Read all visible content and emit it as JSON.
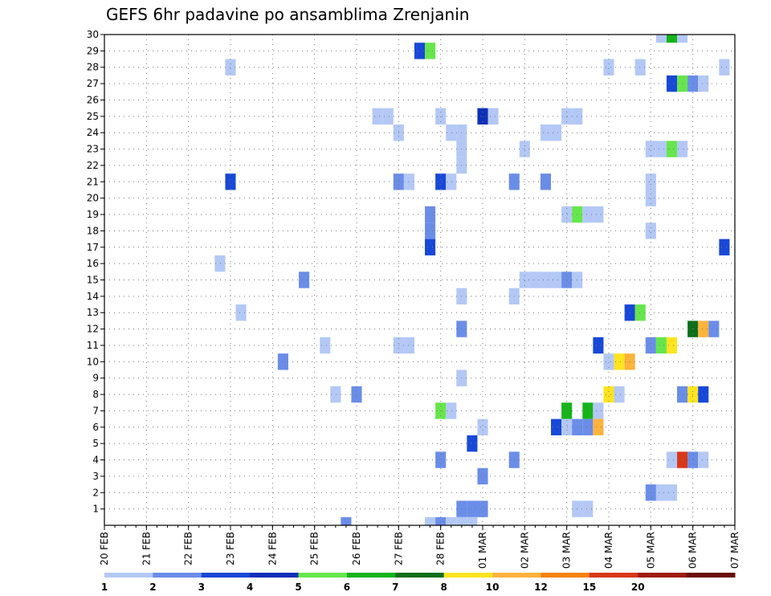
{
  "chart_data": {
    "type": "heatmap",
    "title": "GEFS 6hr padavine po ansamblima Zrenjanin",
    "xlabel": "",
    "ylabel": "",
    "x_ticks": [
      "20 FEB",
      "21 FEB",
      "22 FEB",
      "23 FEB",
      "24 FEB",
      "25 FEB",
      "26 FEB",
      "27 FEB",
      "28 FEB",
      "01 MAR",
      "02 MAR",
      "03 MAR",
      "04 MAR",
      "05 MAR",
      "06 MAR",
      "07 MAR"
    ],
    "y_ticks": [
      1,
      2,
      3,
      4,
      5,
      6,
      7,
      8,
      9,
      10,
      11,
      12,
      13,
      14,
      15,
      16,
      17,
      18,
      19,
      20,
      21,
      22,
      23,
      24,
      25,
      26,
      27,
      28,
      29,
      30
    ],
    "xlim": [
      "20 FEB 00Z",
      "07 MAR 00Z"
    ],
    "ylim": [
      0,
      30
    ],
    "x_unit": "6h step",
    "grid": true,
    "colorbar": {
      "labels": [
        "1",
        "2",
        "3",
        "4",
        "5",
        "6",
        "7",
        "8",
        "10",
        "12",
        "15",
        "20"
      ],
      "colors": [
        "#b3c8f5",
        "#6a8de8",
        "#1848d8",
        "#0e2fb8",
        "#66e64c",
        "#16b41a",
        "#0d6e1a",
        "#ffe41e",
        "#fdb33c",
        "#f5820a",
        "#d83818",
        "#a01c12",
        "#6a0c0c"
      ]
    },
    "cells": [
      {
        "x": "27 FEB 12Z",
        "member": 29,
        "v": 3
      },
      {
        "x": "27 FEB 18Z",
        "member": 29,
        "v": 5
      },
      {
        "x": "05 MAR 06Z",
        "member": 30,
        "v": 1
      },
      {
        "x": "05 MAR 12Z",
        "member": 30,
        "v": 6
      },
      {
        "x": "05 MAR 18Z",
        "member": 30,
        "v": 1
      },
      {
        "x": "23 FEB 00Z",
        "member": 28,
        "v": 1
      },
      {
        "x": "04 MAR 00Z",
        "member": 28,
        "v": 1
      },
      {
        "x": "04 MAR 18Z",
        "member": 28,
        "v": 1
      },
      {
        "x": "06 MAR 18Z",
        "member": 28,
        "v": 1
      },
      {
        "x": "05 MAR 12Z",
        "member": 27,
        "v": 3
      },
      {
        "x": "05 MAR 18Z",
        "member": 27,
        "v": 5
      },
      {
        "x": "06 MAR 00Z",
        "member": 27,
        "v": 2
      },
      {
        "x": "06 MAR 06Z",
        "member": 27,
        "v": 1
      },
      {
        "x": "26 FEB 12Z",
        "member": 25,
        "v": 1
      },
      {
        "x": "26 FEB 18Z",
        "member": 25,
        "v": 1
      },
      {
        "x": "28 FEB 00Z",
        "member": 25,
        "v": 1
      },
      {
        "x": "01 MAR 00Z",
        "member": 25,
        "v": 4
      },
      {
        "x": "01 MAR 06Z",
        "member": 25,
        "v": 1
      },
      {
        "x": "03 MAR 00Z",
        "member": 25,
        "v": 1
      },
      {
        "x": "03 MAR 06Z",
        "member": 25,
        "v": 1
      },
      {
        "x": "27 FEB 00Z",
        "member": 24,
        "v": 1
      },
      {
        "x": "28 FEB 06Z",
        "member": 24,
        "v": 1
      },
      {
        "x": "28 FEB 12Z",
        "member": 24,
        "v": 1
      },
      {
        "x": "02 MAR 12Z",
        "member": 24,
        "v": 1
      },
      {
        "x": "02 MAR 18Z",
        "member": 24,
        "v": 1
      },
      {
        "x": "28 FEB 12Z",
        "member": 23,
        "v": 1
      },
      {
        "x": "02 MAR 00Z",
        "member": 23,
        "v": 1
      },
      {
        "x": "05 MAR 00Z",
        "member": 23,
        "v": 1
      },
      {
        "x": "05 MAR 06Z",
        "member": 23,
        "v": 1
      },
      {
        "x": "05 MAR 12Z",
        "member": 23,
        "v": 5
      },
      {
        "x": "05 MAR 18Z",
        "member": 23,
        "v": 1
      },
      {
        "x": "28 FEB 12Z",
        "member": 22,
        "v": 1
      },
      {
        "x": "23 FEB 00Z",
        "member": 21,
        "v": 3
      },
      {
        "x": "27 FEB 00Z",
        "member": 21,
        "v": 2
      },
      {
        "x": "27 FEB 06Z",
        "member": 21,
        "v": 1
      },
      {
        "x": "28 FEB 00Z",
        "member": 21,
        "v": 3
      },
      {
        "x": "28 FEB 06Z",
        "member": 21,
        "v": 1
      },
      {
        "x": "01 MAR 18Z",
        "member": 21,
        "v": 2
      },
      {
        "x": "02 MAR 12Z",
        "member": 21,
        "v": 2
      },
      {
        "x": "05 MAR 00Z",
        "member": 21,
        "v": 1
      },
      {
        "x": "05 MAR 00Z",
        "member": 20,
        "v": 1
      },
      {
        "x": "27 FEB 18Z",
        "member": 19,
        "v": 2
      },
      {
        "x": "03 MAR 00Z",
        "member": 19,
        "v": 1
      },
      {
        "x": "03 MAR 06Z",
        "member": 19,
        "v": 5
      },
      {
        "x": "03 MAR 12Z",
        "member": 19,
        "v": 1
      },
      {
        "x": "03 MAR 18Z",
        "member": 19,
        "v": 1
      },
      {
        "x": "27 FEB 18Z",
        "member": 18,
        "v": 2
      },
      {
        "x": "05 MAR 00Z",
        "member": 18,
        "v": 1
      },
      {
        "x": "27 FEB 18Z",
        "member": 17,
        "v": 3
      },
      {
        "x": "06 MAR 18Z",
        "member": 17,
        "v": 3
      },
      {
        "x": "22 FEB 18Z",
        "member": 16,
        "v": 1
      },
      {
        "x": "24 FEB 18Z",
        "member": 15,
        "v": 2
      },
      {
        "x": "02 MAR 00Z",
        "member": 15,
        "v": 1
      },
      {
        "x": "02 MAR 06Z",
        "member": 15,
        "v": 1
      },
      {
        "x": "02 MAR 12Z",
        "member": 15,
        "v": 1
      },
      {
        "x": "02 MAR 18Z",
        "member": 15,
        "v": 1
      },
      {
        "x": "03 MAR 00Z",
        "member": 15,
        "v": 2
      },
      {
        "x": "03 MAR 06Z",
        "member": 15,
        "v": 1
      },
      {
        "x": "28 FEB 12Z",
        "member": 14,
        "v": 1
      },
      {
        "x": "01 MAR 18Z",
        "member": 14,
        "v": 1
      },
      {
        "x": "23 FEB 06Z",
        "member": 13,
        "v": 1
      },
      {
        "x": "04 MAR 12Z",
        "member": 13,
        "v": 3
      },
      {
        "x": "04 MAR 18Z",
        "member": 13,
        "v": 5
      },
      {
        "x": "28 FEB 12Z",
        "member": 12,
        "v": 2
      },
      {
        "x": "06 MAR 00Z",
        "member": 12,
        "v": 7
      },
      {
        "x": "06 MAR 06Z",
        "member": 12,
        "v": 10
      },
      {
        "x": "06 MAR 12Z",
        "member": 12,
        "v": 2
      },
      {
        "x": "25 FEB 06Z",
        "member": 11,
        "v": 1
      },
      {
        "x": "27 FEB 00Z",
        "member": 11,
        "v": 1
      },
      {
        "x": "27 FEB 06Z",
        "member": 11,
        "v": 1
      },
      {
        "x": "03 MAR 18Z",
        "member": 11,
        "v": 3
      },
      {
        "x": "05 MAR 00Z",
        "member": 11,
        "v": 2
      },
      {
        "x": "05 MAR 06Z",
        "member": 11,
        "v": 5
      },
      {
        "x": "05 MAR 12Z",
        "member": 11,
        "v": 8
      },
      {
        "x": "24 FEB 06Z",
        "member": 10,
        "v": 2
      },
      {
        "x": "04 MAR 00Z",
        "member": 10,
        "v": 1
      },
      {
        "x": "04 MAR 06Z",
        "member": 10,
        "v": 8
      },
      {
        "x": "04 MAR 12Z",
        "member": 10,
        "v": 10
      },
      {
        "x": "28 FEB 12Z",
        "member": 9,
        "v": 1
      },
      {
        "x": "25 FEB 12Z",
        "member": 8,
        "v": 1
      },
      {
        "x": "26 FEB 00Z",
        "member": 8,
        "v": 2
      },
      {
        "x": "04 MAR 00Z",
        "member": 8,
        "v": 8
      },
      {
        "x": "04 MAR 06Z",
        "member": 8,
        "v": 1
      },
      {
        "x": "05 MAR 18Z",
        "member": 8,
        "v": 2
      },
      {
        "x": "06 MAR 00Z",
        "member": 8,
        "v": 8
      },
      {
        "x": "06 MAR 06Z",
        "member": 8,
        "v": 3
      },
      {
        "x": "28 FEB 00Z",
        "member": 7,
        "v": 5
      },
      {
        "x": "28 FEB 06Z",
        "member": 7,
        "v": 1
      },
      {
        "x": "03 MAR 00Z",
        "member": 7,
        "v": 6
      },
      {
        "x": "03 MAR 12Z",
        "member": 7,
        "v": 6
      },
      {
        "x": "03 MAR 18Z",
        "member": 7,
        "v": 1
      },
      {
        "x": "01 MAR 00Z",
        "member": 6,
        "v": 1
      },
      {
        "x": "02 MAR 18Z",
        "member": 6,
        "v": 3
      },
      {
        "x": "03 MAR 00Z",
        "member": 6,
        "v": 1
      },
      {
        "x": "03 MAR 06Z",
        "member": 6,
        "v": 2
      },
      {
        "x": "03 MAR 12Z",
        "member": 6,
        "v": 2
      },
      {
        "x": "03 MAR 18Z",
        "member": 6,
        "v": 10
      },
      {
        "x": "28 FEB 18Z",
        "member": 5,
        "v": 3
      },
      {
        "x": "28 FEB 00Z",
        "member": 4,
        "v": 2
      },
      {
        "x": "01 MAR 18Z",
        "member": 4,
        "v": 2
      },
      {
        "x": "05 MAR 12Z",
        "member": 4,
        "v": 1
      },
      {
        "x": "05 MAR 18Z",
        "member": 4,
        "v": 15
      },
      {
        "x": "06 MAR 00Z",
        "member": 4,
        "v": 2
      },
      {
        "x": "06 MAR 06Z",
        "member": 4,
        "v": 1
      },
      {
        "x": "01 MAR 00Z",
        "member": 3,
        "v": 2
      },
      {
        "x": "05 MAR 00Z",
        "member": 2,
        "v": 2
      },
      {
        "x": "05 MAR 06Z",
        "member": 2,
        "v": 1
      },
      {
        "x": "05 MAR 12Z",
        "member": 2,
        "v": 1
      },
      {
        "x": "28 FEB 12Z",
        "member": 1,
        "v": 2
      },
      {
        "x": "28 FEB 18Z",
        "member": 1,
        "v": 2
      },
      {
        "x": "01 MAR 00Z",
        "member": 1,
        "v": 2
      },
      {
        "x": "03 MAR 06Z",
        "member": 1,
        "v": 1
      },
      {
        "x": "03 MAR 12Z",
        "member": 1,
        "v": 1
      },
      {
        "x": "25 FEB 18Z",
        "member": 0,
        "v": 2
      },
      {
        "x": "27 FEB 18Z",
        "member": 0,
        "v": 1
      },
      {
        "x": "28 FEB 00Z",
        "member": 0,
        "v": 2
      },
      {
        "x": "28 FEB 06Z",
        "member": 0,
        "v": 1
      },
      {
        "x": "28 FEB 12Z",
        "member": 0,
        "v": 1
      },
      {
        "x": "28 FEB 18Z",
        "member": 0,
        "v": 1
      }
    ]
  }
}
